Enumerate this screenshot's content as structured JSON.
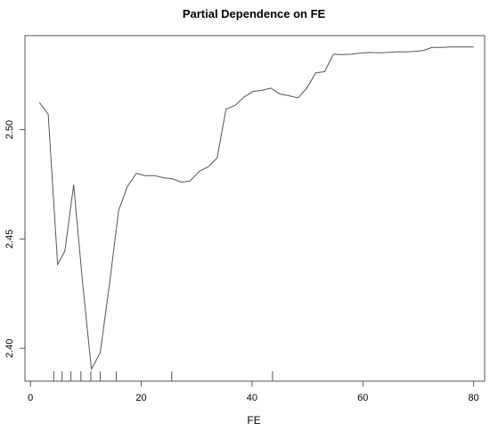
{
  "chart_data": {
    "type": "line",
    "title": "Partial Dependence on FE",
    "xlabel": "FE",
    "ylabel": "",
    "xlim": [
      -1,
      82
    ],
    "ylim": [
      2.385,
      2.543
    ],
    "xticks": [
      0,
      20,
      40,
      60,
      80
    ],
    "yticks": [
      2.4,
      2.45,
      2.5
    ],
    "ytick_labels": [
      "2.40",
      "2.45",
      "2.50"
    ],
    "grid": false,
    "series": [
      {
        "x": [
          1.6,
          3.2,
          4.9,
          6.2,
          7.8,
          9.4,
          11.0,
          12.6,
          14.3,
          15.9,
          17.5,
          19.1,
          20.7,
          22.4,
          24.0,
          25.6,
          27.2,
          28.8,
          30.5,
          32.1,
          33.7,
          35.3,
          36.9,
          38.6,
          40.2,
          41.8,
          43.4,
          45.0,
          46.7,
          48.3,
          49.9,
          51.5,
          53.1,
          54.7,
          56.4,
          58.0,
          59.6,
          61.2,
          62.9,
          64.5,
          66.1,
          67.7,
          69.3,
          70.9,
          72.5,
          74.2,
          75.8,
          77.4,
          79.0,
          80.0
        ],
        "y": [
          2.5125,
          2.507,
          2.4383,
          2.4445,
          2.4748,
          2.43,
          2.3905,
          2.398,
          2.43,
          2.463,
          2.474,
          2.48,
          2.479,
          2.479,
          2.478,
          2.4775,
          2.476,
          2.4765,
          2.481,
          2.483,
          2.487,
          2.5094,
          2.511,
          2.515,
          2.5175,
          2.518,
          2.519,
          2.5163,
          2.5155,
          2.5145,
          2.519,
          2.526,
          2.5265,
          2.5345,
          2.5343,
          2.5345,
          2.535,
          2.5353,
          2.5352,
          2.5353,
          2.5356,
          2.5356,
          2.5358,
          2.5362,
          2.5376,
          2.5376,
          2.5378,
          2.5378,
          2.5378,
          2.5378
        ]
      }
    ],
    "rug": [
      4.2,
      5.7,
      7.3,
      9.1,
      10.9,
      12.6,
      15.5,
      25.5,
      43.7
    ]
  }
}
